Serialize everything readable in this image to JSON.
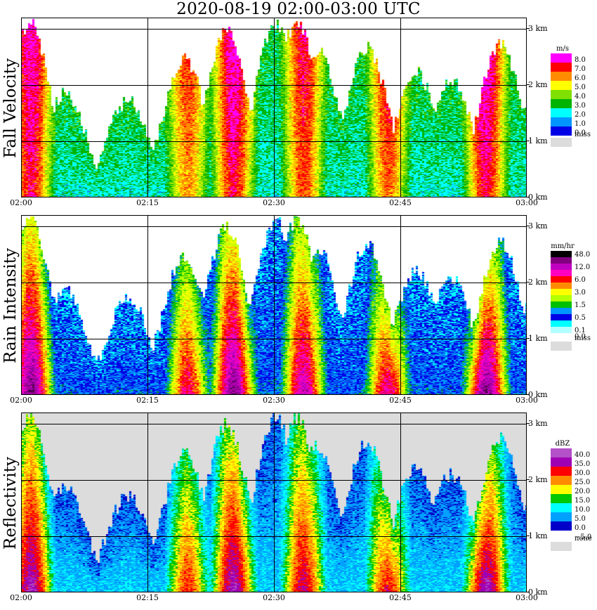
{
  "title": "2020-08-19   02:00-03:00 UTC",
  "x_ticks": [
    "02:00",
    "02:15",
    "02:30",
    "02:45",
    "03:00"
  ],
  "y_ticks": [
    "0 km",
    "1 km",
    "2 km",
    "3 km"
  ],
  "chart_data": [
    {
      "type": "heatmap",
      "ylabel": "Fall Velocity",
      "xlim": [
        "02:00",
        "03:00"
      ],
      "ylim_km": [
        0,
        3.2
      ],
      "legend_unit": "m/s",
      "legend": [
        {
          "label": "8.0",
          "color": "#ff00ff"
        },
        {
          "label": "7.0",
          "color": "#ff0000"
        },
        {
          "label": "6.0",
          "color": "#ff8c00"
        },
        {
          "label": "5.0",
          "color": "#ffff00"
        },
        {
          "label": "4.0",
          "color": "#80e000"
        },
        {
          "label": "3.0",
          "color": "#00b400"
        },
        {
          "label": "2.0",
          "color": "#00ffff"
        },
        {
          "label": "1.0",
          "color": "#0096ff"
        },
        {
          "label": "0.0",
          "color": "#0000e6"
        }
      ],
      "missing_label": "miss",
      "missing_color": "#dcdcdc"
    },
    {
      "type": "heatmap",
      "ylabel": "Rain Intensity",
      "xlim": [
        "02:00",
        "03:00"
      ],
      "ylim_km": [
        0,
        3.2
      ],
      "legend_unit": "mm/hr",
      "legend": [
        {
          "label": "48.0",
          "color": "#000000"
        },
        {
          "label": "",
          "color": "#800080"
        },
        {
          "label": "12.0",
          "color": "#c000c0"
        },
        {
          "label": "",
          "color": "#ff00c0"
        },
        {
          "label": "6.0",
          "color": "#ff0000"
        },
        {
          "label": "",
          "color": "#ff8c00"
        },
        {
          "label": "3.0",
          "color": "#ffff00"
        },
        {
          "label": "",
          "color": "#b4ff00"
        },
        {
          "label": "1.5",
          "color": "#00c000"
        },
        {
          "label": "",
          "color": "#0096ff"
        },
        {
          "label": "0.5",
          "color": "#0000e6"
        },
        {
          "label": "",
          "color": "#00ffff"
        },
        {
          "label": "0.1",
          "color": "#b4ffff"
        },
        {
          "label": "0.0",
          "color": "#ffffff"
        }
      ],
      "missing_label": "miss",
      "missing_color": "#dcdcdc"
    },
    {
      "type": "heatmap",
      "ylabel": "Reflectivity",
      "xlim": [
        "02:00",
        "03:00"
      ],
      "ylim_km": [
        0,
        3.2
      ],
      "legend_unit": "dBZ",
      "legend": [
        {
          "label": "40.0",
          "color": "#b450c8"
        },
        {
          "label": "35.0",
          "color": "#a000b4"
        },
        {
          "label": "30.0",
          "color": "#ff0000"
        },
        {
          "label": "25.0",
          "color": "#ff8c00"
        },
        {
          "label": "20.0",
          "color": "#ffff00"
        },
        {
          "label": "15.0",
          "color": "#00c800"
        },
        {
          "label": "10.0",
          "color": "#00ffff"
        },
        {
          "label": "5.0",
          "color": "#00a0ff"
        },
        {
          "label": "0.0",
          "color": "#0000c8"
        },
        {
          "label": "−5.0",
          "color": "#ffffff"
        }
      ],
      "missing_label": "none",
      "missing_color": "#dcdcdc"
    }
  ]
}
